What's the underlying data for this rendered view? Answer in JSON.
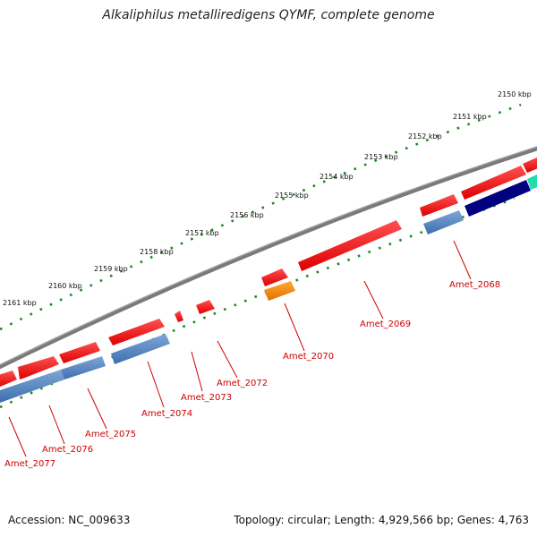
{
  "title": "Alkaliphilus metalliredigens QYMF, complete genome",
  "footer": {
    "accession": "Accession: NC_009633",
    "summary": "Topology: circular; Length: 4,929,566 bp; Genes: 4,763"
  },
  "kbp_ticks": [
    "2150 kbp",
    "2151 kbp",
    "2152 kbp",
    "2153 kbp",
    "2154 kbp",
    "2155 kbp",
    "2156 kbp",
    "2157 kbp",
    "2158 kbp",
    "2159 kbp",
    "2160 kbp",
    "2161 kbp"
  ],
  "gene_labels": [
    "Amet_2068",
    "Amet_2069",
    "Amet_2070",
    "Amet_2072",
    "Amet_2073",
    "Amet_2074",
    "Amet_2075",
    "Amet_2076",
    "Amet_2077"
  ],
  "colors": {
    "forward_gene": "#ff0000",
    "reverse_gene": "#4a80c0",
    "reverse_gene_dark": "#000080",
    "orange_gene": "#ff8800",
    "teal_gene": "#22ddaa",
    "backbone": "#7a7a7a",
    "ticks": "#228822",
    "label": "#cc0000"
  }
}
